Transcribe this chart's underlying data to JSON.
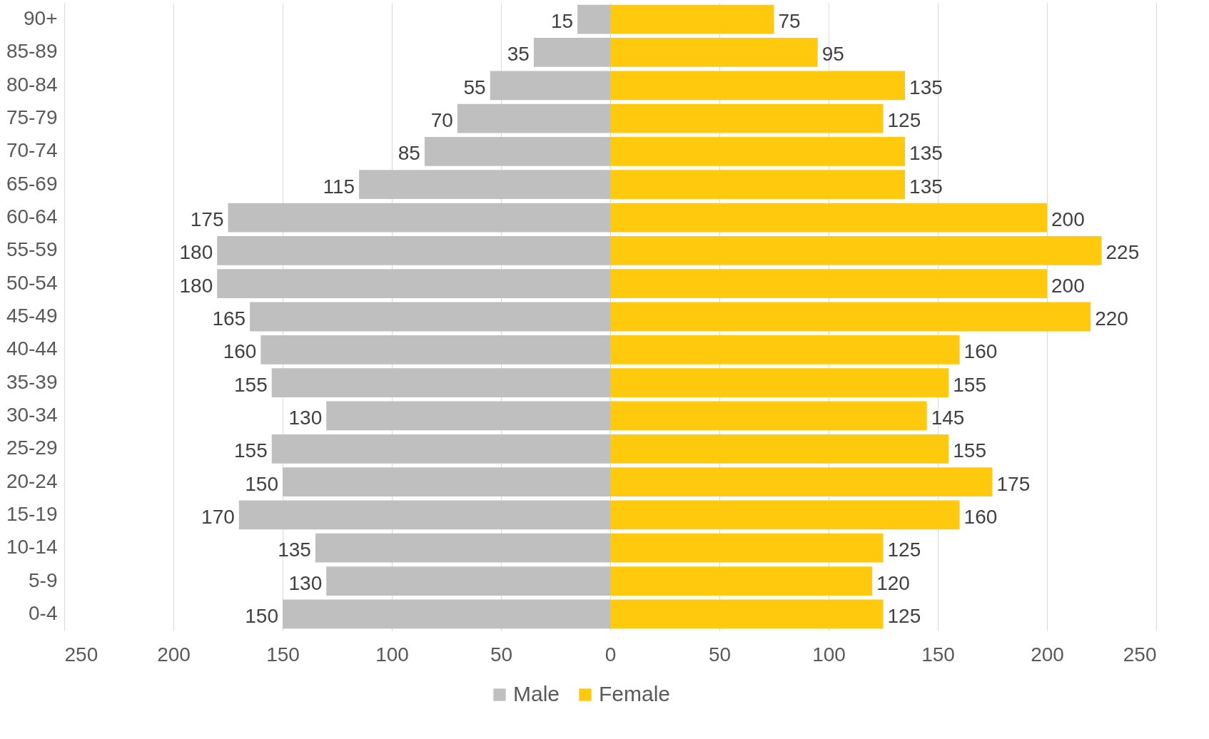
{
  "chart_data": {
    "type": "bar",
    "orientation": "horizontal",
    "categories": [
      "90+",
      "85-89",
      "80-84",
      "75-79",
      "70-74",
      "65-69",
      "60-64",
      "55-59",
      "50-54",
      "45-49",
      "40-44",
      "35-39",
      "30-34",
      "25-29",
      "20-24",
      "15-19",
      "10-14",
      "5-9",
      "0-4"
    ],
    "series": [
      {
        "name": "Male",
        "color": "#bfbfbf",
        "values": [
          15,
          35,
          55,
          70,
          85,
          115,
          175,
          180,
          180,
          165,
          160,
          155,
          130,
          155,
          150,
          170,
          135,
          130,
          150
        ],
        "base": [
          -15,
          -35,
          -55,
          -70,
          -85,
          -115,
          -175,
          -180,
          -180,
          -165,
          -160,
          -155,
          -130,
          -155,
          -150,
          -170,
          -135,
          -130,
          -150
        ]
      },
      {
        "name": "Female",
        "color": "#ffc90e",
        "values": [
          75,
          95,
          135,
          125,
          135,
          135,
          200,
          225,
          200,
          220,
          160,
          155,
          145,
          155,
          175,
          160,
          125,
          120,
          125
        ],
        "base": [
          0,
          0,
          0,
          0,
          0,
          0,
          0,
          0,
          0,
          0,
          0,
          0,
          0,
          0,
          0,
          0,
          0,
          0,
          0
        ]
      }
    ],
    "data_labels": true,
    "xlim": [
      -250,
      250
    ],
    "xticks": [
      {
        "value": -250,
        "label": "250"
      },
      {
        "value": -200,
        "label": "200"
      },
      {
        "value": -150,
        "label": "150"
      },
      {
        "value": -100,
        "label": "100"
      },
      {
        "value": -50,
        "label": "50"
      },
      0,
      50,
      100,
      150,
      200,
      250
    ],
    "grid": "x",
    "legend": "bottom"
  }
}
